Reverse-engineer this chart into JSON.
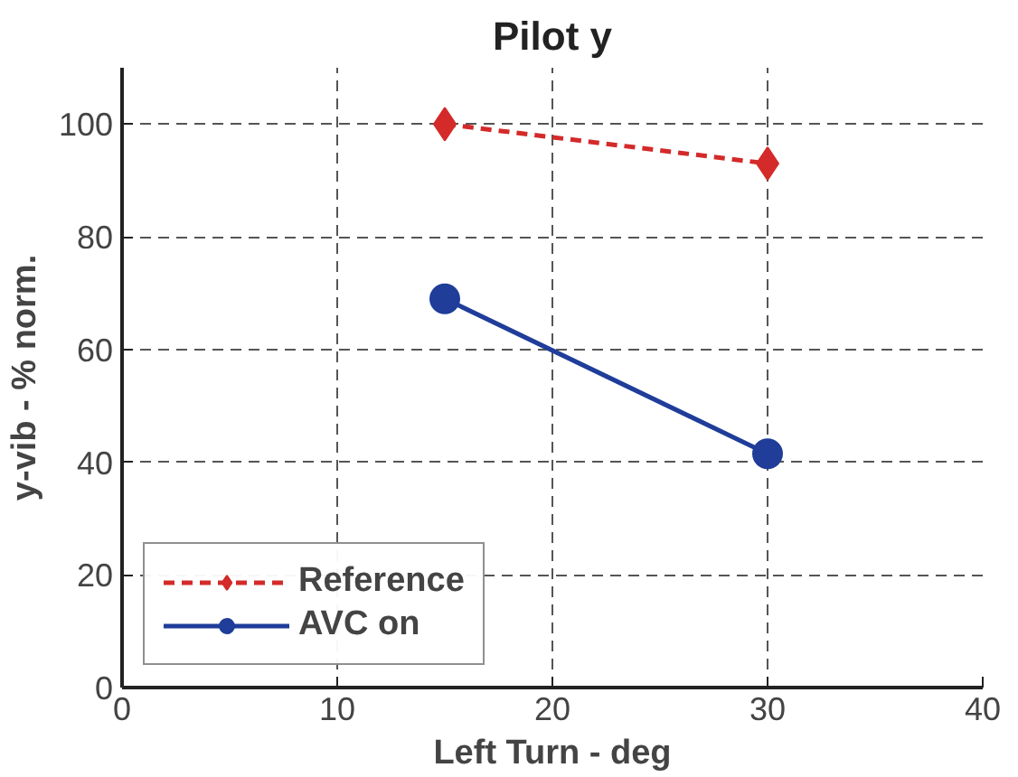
{
  "chart_data": {
    "type": "line",
    "title": "Pilot y",
    "xlabel": "Left Turn - deg",
    "ylabel": "y-vib - % norm.",
    "x": [
      15,
      30
    ],
    "series": [
      {
        "name": "Reference",
        "color": "#d42a2a",
        "values": [
          100,
          93
        ],
        "marker": "diamond",
        "line_style": "dashed"
      },
      {
        "name": "AVC on",
        "color": "#1f3d99",
        "values": [
          69,
          41.5
        ],
        "marker": "circle",
        "line_style": "solid"
      }
    ],
    "xlim": [
      0,
      40
    ],
    "xticks": [
      0,
      10,
      20,
      30,
      40
    ],
    "ylim": [
      0,
      110
    ],
    "yticks": [
      0,
      20,
      40,
      60,
      80,
      100
    ],
    "grid": true,
    "legend": "bottom left"
  }
}
